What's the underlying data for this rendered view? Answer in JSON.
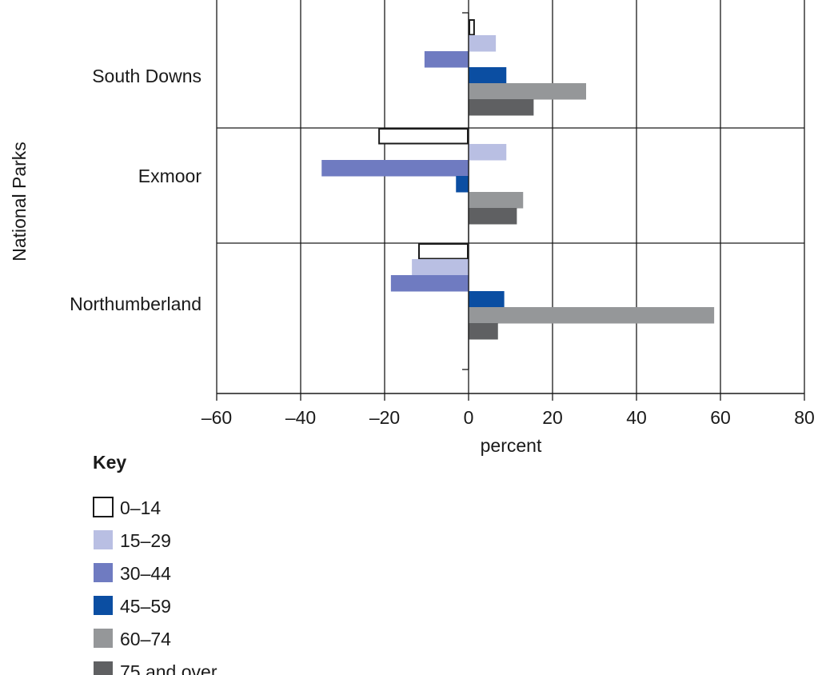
{
  "chart_data": {
    "type": "bar",
    "orientation": "horizontal",
    "categories": [
      "South Downs",
      "Exmoor",
      "Northumberland"
    ],
    "series": [
      {
        "name": "0–14",
        "color": "#ffffff",
        "stroke": "#1a1a1a",
        "values": [
          1.5,
          -21.5,
          -12
        ]
      },
      {
        "name": "15–29",
        "color": "#b9bfe3",
        "values": [
          6.5,
          9,
          -13.5
        ]
      },
      {
        "name": "30–44",
        "color": "#6f7bc1",
        "values": [
          -10.5,
          -35,
          -18.5
        ]
      },
      {
        "name": "45–59",
        "color": "#0b4ea2",
        "values": [
          9,
          -3,
          8.5
        ]
      },
      {
        "name": "60–74",
        "color": "#959799",
        "values": [
          28,
          13,
          58.5
        ]
      },
      {
        "name": "75 and over",
        "color": "#5f6062",
        "values": [
          15.5,
          11.5,
          7
        ]
      }
    ],
    "xlabel": "percent",
    "ylabel": "National Parks",
    "xlim": [
      -60,
      80
    ],
    "xticks": [
      -60,
      -40,
      -20,
      0,
      20,
      40,
      60,
      80
    ],
    "xtick_labels": [
      "–60",
      "–40",
      "–20",
      "0",
      "20",
      "40",
      "60",
      "80"
    ],
    "grid": true,
    "legend": {
      "title": "Key",
      "placement": "bottom-left"
    }
  }
}
